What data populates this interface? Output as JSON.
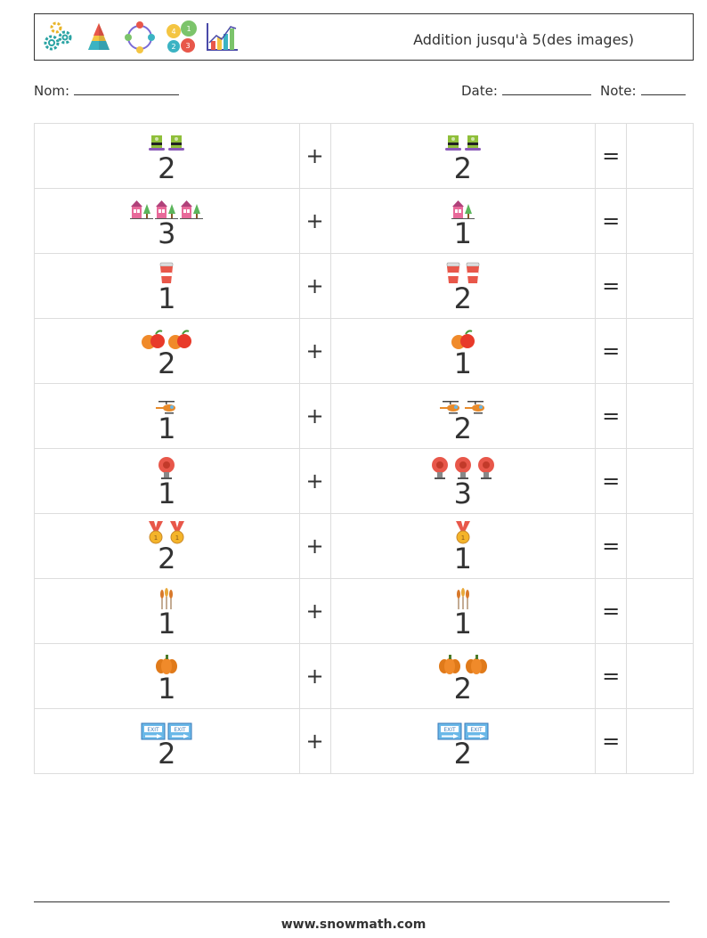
{
  "header": {
    "title": "Addition jusqu'à 5(des images)",
    "logos": [
      "gears-icon",
      "pyramid-icon",
      "cycle-icon",
      "numbered-circles-icon",
      "bar-chart-icon"
    ]
  },
  "info": {
    "name_label": "Nom:",
    "date_label": "Date:",
    "score_label": "Note:"
  },
  "problems": [
    {
      "a": "2",
      "a_count": 2,
      "b": "2",
      "b_count": 2,
      "icon": "hat-icon",
      "op": "+",
      "eq": "="
    },
    {
      "a": "3",
      "a_count": 3,
      "b": "1",
      "b_count": 1,
      "icon": "house-tree-icon",
      "op": "+",
      "eq": "="
    },
    {
      "a": "1",
      "a_count": 1,
      "b": "2",
      "b_count": 2,
      "icon": "cup-icon",
      "op": "+",
      "eq": "="
    },
    {
      "a": "2",
      "a_count": 2,
      "b": "1",
      "b_count": 1,
      "icon": "fruit-icon",
      "op": "+",
      "eq": "="
    },
    {
      "a": "1",
      "a_count": 1,
      "b": "2",
      "b_count": 2,
      "icon": "helicopter-icon",
      "op": "+",
      "eq": "="
    },
    {
      "a": "1",
      "a_count": 1,
      "b": "3",
      "b_count": 3,
      "icon": "alarm-bell-icon",
      "op": "+",
      "eq": "="
    },
    {
      "a": "2",
      "a_count": 2,
      "b": "1",
      "b_count": 1,
      "icon": "medal-icon",
      "op": "+",
      "eq": "="
    },
    {
      "a": "1",
      "a_count": 1,
      "b": "1",
      "b_count": 1,
      "icon": "wheat-icon",
      "op": "+",
      "eq": "="
    },
    {
      "a": "1",
      "a_count": 1,
      "b": "2",
      "b_count": 2,
      "icon": "pumpkin-icon",
      "op": "+",
      "eq": "="
    },
    {
      "a": "2",
      "a_count": 2,
      "b": "2",
      "b_count": 2,
      "icon": "exit-sign-icon",
      "op": "+",
      "eq": "="
    }
  ],
  "footer": {
    "url": "www.snowmath.com"
  }
}
